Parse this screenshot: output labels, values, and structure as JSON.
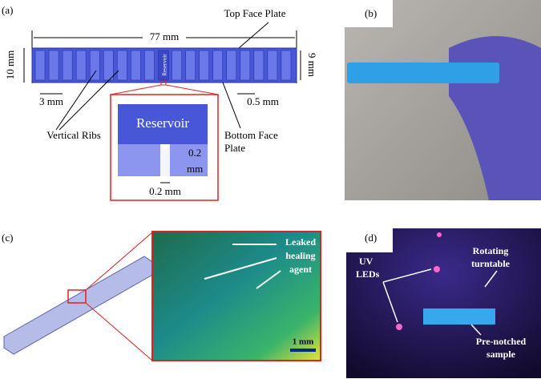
{
  "panel_a": {
    "label": "(a)",
    "length": "77 mm",
    "top_plate": "Top Face Plate",
    "height": "10 mm",
    "inner_height": "9 mm",
    "reservoir_small": "Reservoir",
    "rib_spacing": "3 mm",
    "rib_thickness": "0.5 mm",
    "ribs": "Vertical Ribs",
    "bottom_plate": [
      "Bottom Face",
      "Plate"
    ],
    "zoom_reservoir": "Reservoir",
    "notch_depth": [
      "0.2",
      "mm"
    ],
    "notch_width": "0.2 mm"
  },
  "panel_b": {
    "label": "(b)"
  },
  "panel_c": {
    "label": "(c)",
    "annotation": [
      "Leaked",
      "healing",
      "agent"
    ],
    "scale_bar": "1 mm"
  },
  "panel_d": {
    "label": "(d)",
    "leds": [
      "UV",
      "LEDs"
    ],
    "turntable": [
      "Rotating",
      "turntable"
    ],
    "sample": [
      "Pre-notched",
      "sample"
    ]
  }
}
